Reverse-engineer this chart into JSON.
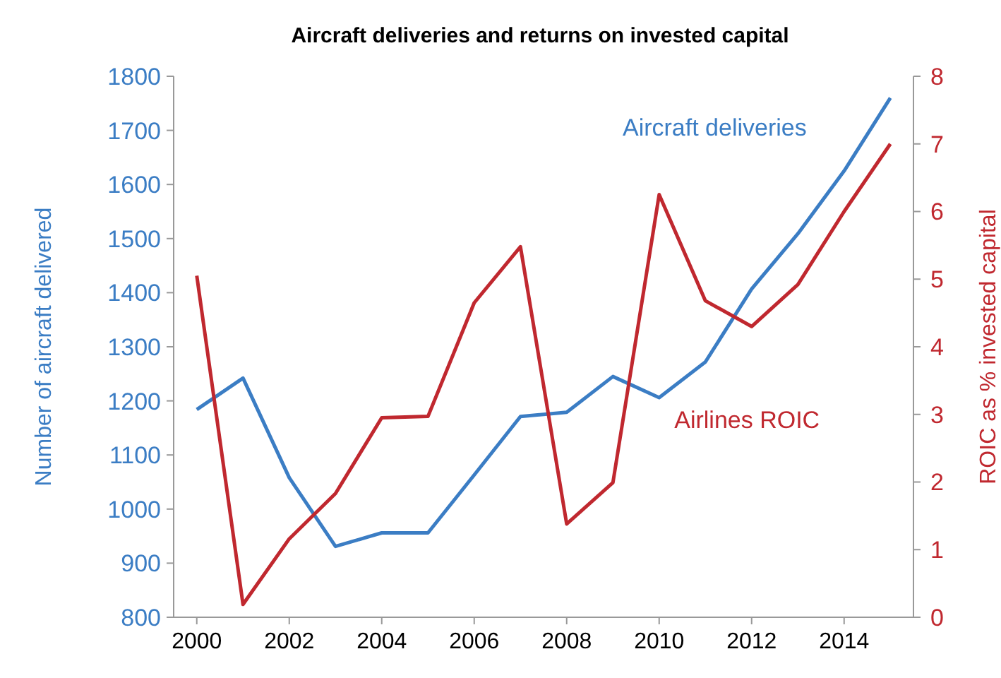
{
  "chart_data": {
    "type": "line",
    "title": "Aircraft deliveries and returns on invested capital",
    "ylabel": "Number of aircraft delivered",
    "y2label": "ROIC as % invested capital",
    "x": [
      2000,
      2001,
      2002,
      2003,
      2004,
      2005,
      2006,
      2007,
      2008,
      2009,
      2010,
      2011,
      2012,
      2013,
      2014,
      2015
    ],
    "series": [
      {
        "name": "Aircraft deliveries",
        "color": "#3b7dc4",
        "values": [
          1184,
          1242,
          1058,
          931,
          956,
          956,
          1063,
          1171,
          1179,
          1245,
          1206,
          1272,
          1407,
          1509,
          1625,
          1760
        ]
      },
      {
        "name": "Airlines ROIC",
        "color": "#c0282f",
        "axis": "y2",
        "values": [
          5.05,
          0.19,
          1.16,
          1.83,
          2.95,
          2.97,
          4.65,
          5.48,
          1.38,
          1.99,
          6.25,
          4.68,
          4.3,
          4.92,
          6.0,
          7.0
        ]
      }
    ],
    "xlim": [
      1999.5,
      2015.5
    ],
    "xticks": [
      2000,
      2002,
      2004,
      2006,
      2008,
      2010,
      2012,
      2014
    ],
    "ylim": [
      800,
      1800
    ],
    "yticks": [
      800,
      900,
      1000,
      1100,
      1200,
      1300,
      1400,
      1500,
      1600,
      1700,
      1800
    ],
    "y2lim": [
      0,
      8
    ],
    "y2ticks": [
      0,
      1,
      2,
      3,
      4,
      5,
      6,
      7,
      8
    ],
    "grid": false,
    "line_style": "solid",
    "marker": "none"
  }
}
